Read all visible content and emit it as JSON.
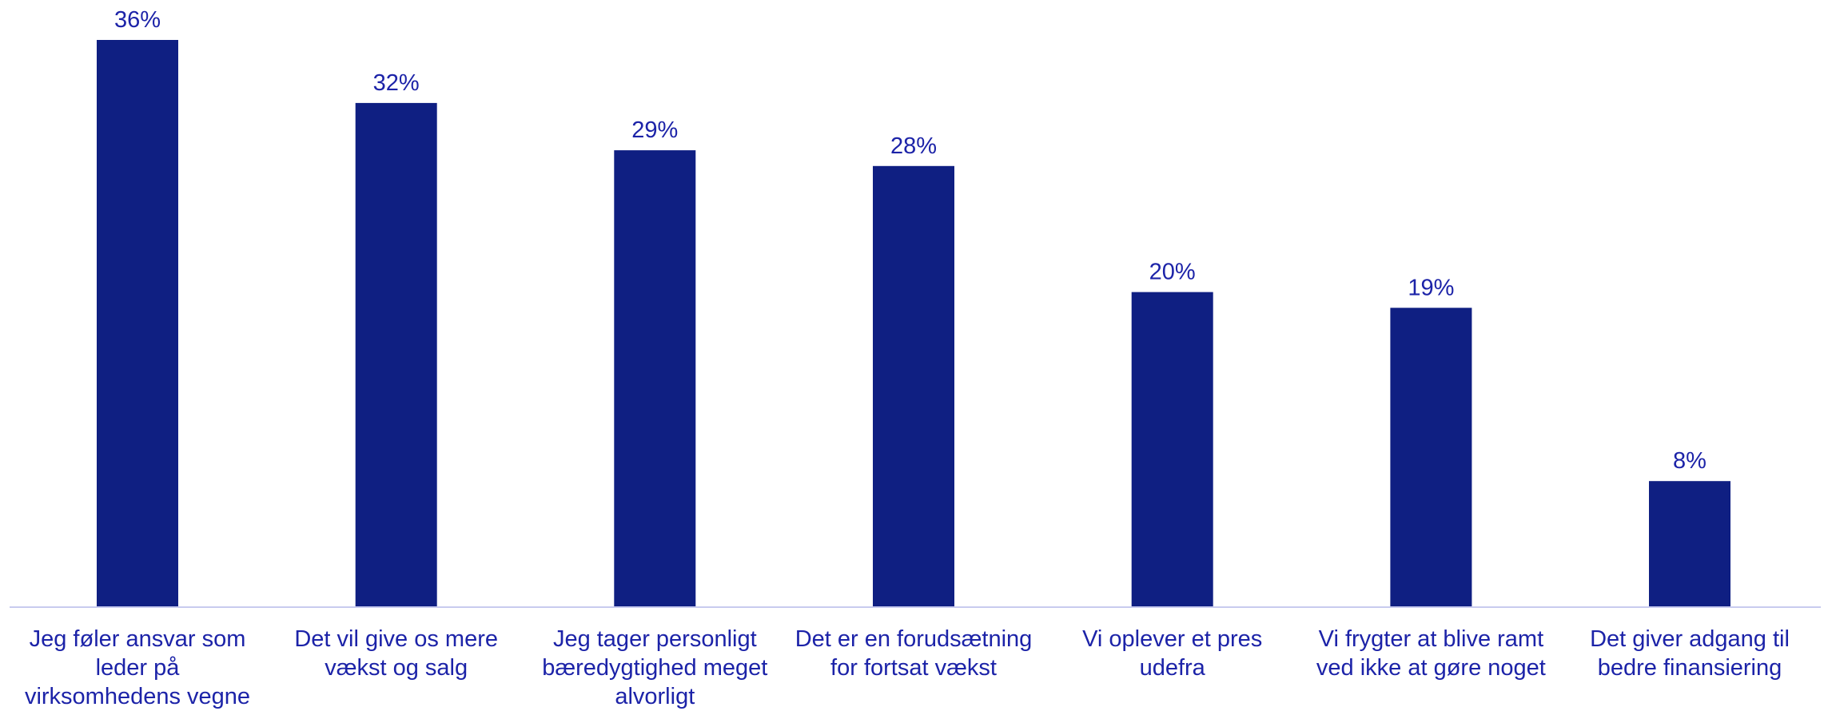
{
  "chart_data": {
    "type": "bar",
    "categories": [
      "Jeg føler ansvar som leder på virksomhedens vegne",
      "Det vil give os mere vækst og salg",
      "Jeg tager personligt bæredygtighed meget alvorligt",
      "Det er en forudsætning for fortsat vækst",
      "Vi oplever et pres udefra",
      "Vi frygter at blive ramt ved ikke at gøre noget",
      "Det giver adgang til bedre finansiering"
    ],
    "values": [
      36,
      32,
      29,
      28,
      20,
      19,
      8
    ],
    "data_labels": [
      "36%",
      "32%",
      "29%",
      "28%",
      "20%",
      "19%",
      "8%"
    ],
    "value_unit": "%",
    "ylim": [
      0,
      36
    ],
    "grid": false,
    "legend": "none",
    "colors": {
      "bar": "#0f1f82",
      "label": "#1c23a8",
      "axis": "#c8cbef"
    }
  }
}
